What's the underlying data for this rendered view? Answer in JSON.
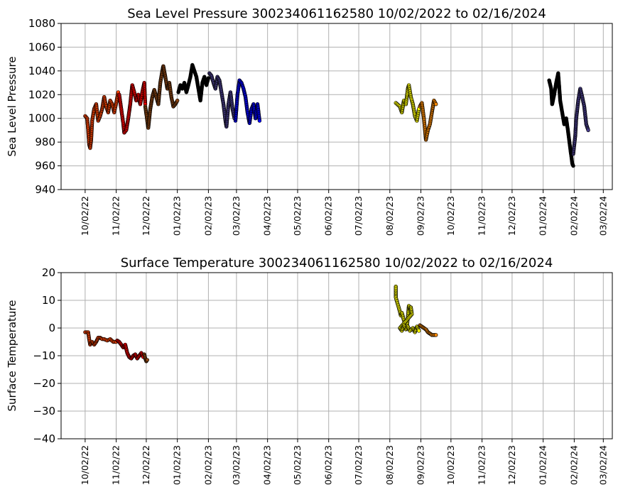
{
  "chart_data": [
    {
      "type": "scatter",
      "title": "Sea Level Pressure 300234061162580  10/02/2022 to 02/16/2024",
      "ylabel": "Sea Level Pressure",
      "xlabel": "",
      "xlim": [
        "2022-09-08",
        "2024-03-11"
      ],
      "ylim": [
        940,
        1080
      ],
      "yticks": [
        940,
        960,
        980,
        1000,
        1020,
        1040,
        1060,
        1080
      ],
      "xticks": [
        "10/02/22",
        "11/02/22",
        "12/02/22",
        "01/02/23",
        "02/02/23",
        "03/02/23",
        "04/02/23",
        "05/02/23",
        "06/02/23",
        "07/02/23",
        "08/02/23",
        "09/02/23",
        "10/02/23",
        "11/02/23",
        "12/02/23",
        "01/02/24",
        "02/02/24",
        "03/02/24"
      ],
      "grid": true,
      "colors": [
        "#ff4500",
        "#ff0000",
        "#8b4513",
        "#000000",
        "#483d8b",
        "#0000ff",
        "#ffff00",
        "#ff8c00"
      ],
      "series": [
        {
          "color": "#ff4500",
          "points": [
            [
              "2022-10-02",
              1002
            ],
            [
              "2022-10-04",
              1000
            ],
            [
              "2022-10-05",
              990
            ],
            [
              "2022-10-06",
              978
            ],
            [
              "2022-10-07",
              975
            ],
            [
              "2022-10-08",
              982
            ],
            [
              "2022-10-09",
              998
            ],
            [
              "2022-10-11",
              1008
            ],
            [
              "2022-10-13",
              1012
            ],
            [
              "2022-10-15",
              998
            ],
            [
              "2022-10-17",
              1002
            ],
            [
              "2022-10-19",
              1008
            ],
            [
              "2022-10-21",
              1018
            ],
            [
              "2022-10-23",
              1010
            ],
            [
              "2022-10-25",
              1005
            ],
            [
              "2022-10-27",
              1015
            ],
            [
              "2022-10-29",
              1012
            ],
            [
              "2022-10-31",
              1005
            ],
            [
              "2022-11-02",
              1013
            ],
            [
              "2022-11-04",
              1022
            ]
          ]
        },
        {
          "color": "#ff0000",
          "points": [
            [
              "2022-11-05",
              1020
            ],
            [
              "2022-11-07",
              1008
            ],
            [
              "2022-11-09",
              996
            ],
            [
              "2022-11-10",
              988
            ],
            [
              "2022-11-12",
              990
            ],
            [
              "2022-11-14",
              1000
            ],
            [
              "2022-11-16",
              1012
            ],
            [
              "2022-11-18",
              1028
            ],
            [
              "2022-11-20",
              1022
            ],
            [
              "2022-11-22",
              1015
            ],
            [
              "2022-11-24",
              1020
            ],
            [
              "2022-11-26",
              1012
            ],
            [
              "2022-11-28",
              1022
            ],
            [
              "2022-11-30",
              1030
            ],
            [
              "2022-12-01",
              1012
            ]
          ]
        },
        {
          "color": "#8b4513",
          "points": [
            [
              "2022-12-01",
              1010
            ],
            [
              "2022-12-03",
              998
            ],
            [
              "2022-12-04",
              992
            ],
            [
              "2022-12-06",
              1008
            ],
            [
              "2022-12-08",
              1018
            ],
            [
              "2022-12-10",
              1024
            ],
            [
              "2022-12-12",
              1018
            ],
            [
              "2022-12-14",
              1012
            ],
            [
              "2022-12-16",
              1030
            ],
            [
              "2022-12-18",
              1040
            ],
            [
              "2022-12-19",
              1044
            ],
            [
              "2022-12-21",
              1035
            ],
            [
              "2022-12-23",
              1025
            ],
            [
              "2022-12-25",
              1030
            ],
            [
              "2022-12-27",
              1018
            ],
            [
              "2022-12-29",
              1010
            ],
            [
              "2022-12-31",
              1012
            ],
            [
              "2023-01-02",
              1015
            ]
          ]
        },
        {
          "color": "#000000",
          "points": [
            [
              "2023-01-03",
              1022
            ],
            [
              "2023-01-05",
              1028
            ],
            [
              "2023-01-07",
              1025
            ],
            [
              "2023-01-09",
              1030
            ],
            [
              "2023-01-11",
              1022
            ],
            [
              "2023-01-13",
              1028
            ],
            [
              "2023-01-15",
              1035
            ],
            [
              "2023-01-17",
              1045
            ],
            [
              "2023-01-19",
              1040
            ],
            [
              "2023-01-21",
              1035
            ],
            [
              "2023-01-23",
              1025
            ],
            [
              "2023-01-25",
              1015
            ],
            [
              "2023-01-27",
              1030
            ],
            [
              "2023-01-29",
              1035
            ],
            [
              "2023-01-31",
              1028
            ],
            [
              "2023-02-02",
              1034
            ]
          ]
        },
        {
          "color": "#483d8b",
          "points": [
            [
              "2023-02-03",
              1038
            ],
            [
              "2023-02-05",
              1036
            ],
            [
              "2023-02-07",
              1030
            ],
            [
              "2023-02-09",
              1025
            ],
            [
              "2023-02-11",
              1035
            ],
            [
              "2023-02-13",
              1032
            ],
            [
              "2023-02-15",
              1022
            ],
            [
              "2023-02-17",
              1012
            ],
            [
              "2023-02-19",
              998
            ],
            [
              "2023-02-20",
              993
            ],
            [
              "2023-02-22",
              1012
            ],
            [
              "2023-02-24",
              1022
            ],
            [
              "2023-02-26",
              1008
            ],
            [
              "2023-02-28",
              1000
            ]
          ]
        },
        {
          "color": "#0000ff",
          "points": [
            [
              "2023-03-01",
              998
            ],
            [
              "2023-03-03",
              1020
            ],
            [
              "2023-03-05",
              1032
            ],
            [
              "2023-03-07",
              1030
            ],
            [
              "2023-03-09",
              1025
            ],
            [
              "2023-03-11",
              1018
            ],
            [
              "2023-03-13",
              1005
            ],
            [
              "2023-03-15",
              996
            ],
            [
              "2023-03-17",
              1008
            ],
            [
              "2023-03-19",
              1012
            ],
            [
              "2023-03-21",
              1000
            ],
            [
              "2023-03-23",
              1012
            ],
            [
              "2023-03-25",
              998
            ]
          ]
        },
        {
          "color": "#ffff00",
          "points": [
            [
              "2023-08-08",
              1013
            ],
            [
              "2023-08-12",
              1010
            ],
            [
              "2023-08-14",
              1005
            ],
            [
              "2023-08-16",
              1015
            ],
            [
              "2023-08-18",
              1012
            ],
            [
              "2023-08-20",
              1025
            ],
            [
              "2023-08-21",
              1028
            ],
            [
              "2023-08-23",
              1018
            ],
            [
              "2023-08-25",
              1012
            ],
            [
              "2023-08-27",
              1002
            ],
            [
              "2023-08-29",
              998
            ],
            [
              "2023-08-31",
              1008
            ]
          ]
        },
        {
          "color": "#ff8c00",
          "points": [
            [
              "2023-09-01",
              1010
            ],
            [
              "2023-09-03",
              1013
            ],
            [
              "2023-09-05",
              1000
            ],
            [
              "2023-09-07",
              982
            ],
            [
              "2023-09-09",
              990
            ],
            [
              "2023-09-11",
              995
            ],
            [
              "2023-09-13",
              1005
            ],
            [
              "2023-09-15",
              1015
            ],
            [
              "2023-09-17",
              1012
            ]
          ]
        },
        {
          "color": "#000000",
          "points": [
            [
              "2024-01-08",
              1032
            ],
            [
              "2024-01-10",
              1025
            ],
            [
              "2024-01-11",
              1012
            ],
            [
              "2024-01-13",
              1020
            ],
            [
              "2024-01-15",
              1030
            ],
            [
              "2024-01-17",
              1038
            ],
            [
              "2024-01-19",
              1015
            ],
            [
              "2024-01-21",
              1005
            ],
            [
              "2024-01-23",
              995
            ],
            [
              "2024-01-25",
              1000
            ],
            [
              "2024-01-27",
              988
            ],
            [
              "2024-01-29",
              975
            ],
            [
              "2024-01-31",
              962
            ],
            [
              "2024-02-01",
              960
            ]
          ]
        },
        {
          "color": "#483d8b",
          "points": [
            [
              "2024-02-01",
              970
            ],
            [
              "2024-02-03",
              985
            ],
            [
              "2024-02-04",
              1000
            ],
            [
              "2024-02-06",
              1015
            ],
            [
              "2024-02-08",
              1025
            ],
            [
              "2024-02-10",
              1018
            ],
            [
              "2024-02-12",
              1010
            ],
            [
              "2024-02-14",
              995
            ],
            [
              "2024-02-16",
              990
            ]
          ]
        }
      ]
    },
    {
      "type": "scatter",
      "title": "Surface Temperature 300234061162580  10/02/2022 to 02/16/2024",
      "ylabel": "Surface Temperature",
      "xlabel": "",
      "xlim": [
        "2022-09-08",
        "2024-03-11"
      ],
      "ylim": [
        -40,
        20
      ],
      "yticks": [
        -40,
        -30,
        -20,
        -10,
        0,
        10,
        20
      ],
      "xticks": [
        "10/02/22",
        "11/02/22",
        "12/02/22",
        "01/02/23",
        "02/02/23",
        "03/02/23",
        "04/02/23",
        "05/02/23",
        "06/02/23",
        "07/02/23",
        "08/02/23",
        "09/02/23",
        "10/02/23",
        "11/02/23",
        "12/02/23",
        "01/02/24",
        "02/02/24",
        "03/02/24"
      ],
      "grid": true,
      "series": [
        {
          "color": "#ff4500",
          "points": [
            [
              "2022-10-02",
              -1.5
            ],
            [
              "2022-10-05",
              -1.5
            ],
            [
              "2022-10-06",
              -4
            ],
            [
              "2022-10-07",
              -6
            ],
            [
              "2022-10-09",
              -5
            ],
            [
              "2022-10-11",
              -6
            ],
            [
              "2022-10-13",
              -5
            ],
            [
              "2022-10-15",
              -3.5
            ],
            [
              "2022-10-17",
              -3.5
            ],
            [
              "2022-10-19",
              -4
            ],
            [
              "2022-10-21",
              -4
            ],
            [
              "2022-10-24",
              -4.5
            ],
            [
              "2022-10-27",
              -4
            ],
            [
              "2022-10-30",
              -5
            ],
            [
              "2022-11-02",
              -5
            ]
          ]
        },
        {
          "color": "#ff0000",
          "points": [
            [
              "2022-11-03",
              -4.5
            ],
            [
              "2022-11-05",
              -5
            ],
            [
              "2022-11-07",
              -6
            ],
            [
              "2022-11-09",
              -7
            ],
            [
              "2022-11-11",
              -6
            ],
            [
              "2022-11-13",
              -9
            ],
            [
              "2022-11-15",
              -10.5
            ],
            [
              "2022-11-17",
              -11
            ],
            [
              "2022-11-19",
              -10
            ],
            [
              "2022-11-21",
              -9.5
            ],
            [
              "2022-11-23",
              -11
            ],
            [
              "2022-11-25",
              -10
            ],
            [
              "2022-11-27",
              -9
            ],
            [
              "2022-11-29",
              -10.5
            ]
          ]
        },
        {
          "color": "#8b4513",
          "points": [
            [
              "2022-11-30",
              -9.5
            ],
            [
              "2022-12-01",
              -11
            ],
            [
              "2022-12-02",
              -12
            ],
            [
              "2022-12-03",
              -11.5
            ]
          ]
        },
        {
          "color": "#ffff00",
          "points": [
            [
              "2023-08-08",
              15
            ],
            [
              "2023-08-08",
              13.5
            ],
            [
              "2023-08-08",
              12
            ],
            [
              "2023-08-08",
              11
            ],
            [
              "2023-08-12",
              6
            ],
            [
              "2023-08-13",
              4.5
            ],
            [
              "2023-08-14",
              5.5
            ],
            [
              "2023-08-17",
              1.5
            ],
            [
              "2023-08-19",
              0
            ],
            [
              "2023-08-21",
              8
            ],
            [
              "2023-08-22",
              6.5
            ],
            [
              "2023-08-23",
              7.5
            ],
            [
              "2023-08-24",
              5
            ],
            [
              "2023-08-12",
              0
            ],
            [
              "2023-08-14",
              -1
            ],
            [
              "2023-08-16",
              1
            ],
            [
              "2023-08-18",
              -0.5
            ],
            [
              "2023-08-20",
              0.5
            ],
            [
              "2023-08-22",
              -1
            ],
            [
              "2023-08-25",
              0
            ],
            [
              "2023-08-27",
              -1.5
            ],
            [
              "2023-08-29",
              0.5
            ],
            [
              "2023-08-31",
              -1
            ]
          ]
        },
        {
          "color": "#ff8c00",
          "points": [
            [
              "2023-09-01",
              1
            ],
            [
              "2023-09-03",
              0.5
            ],
            [
              "2023-09-05",
              0
            ],
            [
              "2023-09-07",
              -0.5
            ],
            [
              "2023-09-09",
              -1.5
            ],
            [
              "2023-09-11",
              -2
            ],
            [
              "2023-09-13",
              -2.5
            ],
            [
              "2023-09-17",
              -2.5
            ]
          ]
        }
      ]
    }
  ]
}
